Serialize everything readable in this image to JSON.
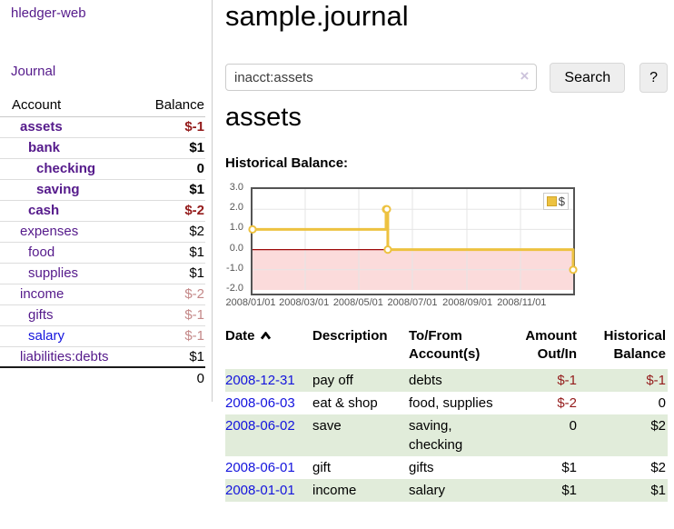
{
  "app": {
    "title": "hledger-web",
    "nav_journal": "Journal"
  },
  "colors": {
    "link_purple": "#551a8b",
    "link_blue": "#1414dd",
    "negative_strong": "#941b1b",
    "negative_muted": "#c48888",
    "row_green": "#e1ecda",
    "series_gold": "#edc240",
    "negative_region_pink": "#fbdbdb",
    "zero_line_red": "#9e0b0b"
  },
  "sidebar": {
    "accounts_header": {
      "account": "Account",
      "balance": "Balance"
    },
    "accounts": [
      {
        "name": "assets",
        "depth": 1,
        "bold": true,
        "balance": "$-1",
        "balance_style": "negative-strong",
        "link_color": "purple"
      },
      {
        "name": "bank",
        "depth": 2,
        "bold": true,
        "balance": "$1",
        "balance_style": "normal",
        "link_color": "purple"
      },
      {
        "name": "checking",
        "depth": 3,
        "bold": true,
        "balance": "0",
        "balance_style": "normal",
        "link_color": "purple"
      },
      {
        "name": "saving",
        "depth": 3,
        "bold": true,
        "balance": "$1",
        "balance_style": "normal",
        "link_color": "purple"
      },
      {
        "name": "cash",
        "depth": 2,
        "bold": true,
        "balance": "$-2",
        "balance_style": "negative-strong",
        "link_color": "purple"
      },
      {
        "name": "expenses",
        "depth": 1,
        "bold": false,
        "balance": "$2",
        "balance_style": "normal",
        "link_color": "purple"
      },
      {
        "name": "food",
        "depth": 2,
        "bold": false,
        "balance": "$1",
        "balance_style": "normal",
        "link_color": "purple"
      },
      {
        "name": "supplies",
        "depth": 2,
        "bold": false,
        "balance": "$1",
        "balance_style": "normal",
        "link_color": "purple"
      },
      {
        "name": "income",
        "depth": 1,
        "bold": false,
        "balance": "$-2",
        "balance_style": "negative-muted",
        "link_color": "purple"
      },
      {
        "name": "gifts",
        "depth": 2,
        "bold": false,
        "balance": "$-1",
        "balance_style": "negative-muted",
        "link_color": "purple"
      },
      {
        "name": "salary",
        "depth": 2,
        "bold": false,
        "balance": "$-1",
        "balance_style": "negative-muted",
        "link_color": "blue"
      },
      {
        "name": "liabilities:debts",
        "depth": 1,
        "bold": false,
        "balance": "$1",
        "balance_style": "normal",
        "link_color": "purple"
      }
    ],
    "total": "0"
  },
  "main": {
    "title": "sample.journal",
    "search": {
      "value": "inacct:assets",
      "clear_icon": "×",
      "button": "Search",
      "help_button": "?"
    },
    "account_heading": "assets",
    "chart_label": "Historical Balance:"
  },
  "chart_data": {
    "type": "line",
    "step": true,
    "title": "Historical Balance",
    "x_start": "2008-01-01",
    "x_end": "2008-12-31",
    "ylim": [
      -2,
      3
    ],
    "y_ticks": [
      3.0,
      2.0,
      1.0,
      0.0,
      -1.0,
      -2.0
    ],
    "x_ticks": [
      {
        "label": "2008/01/01",
        "date": "2008-01-01"
      },
      {
        "label": "2008/03/01",
        "date": "2008-03-01"
      },
      {
        "label": "2008/05/01",
        "date": "2008-05-01"
      },
      {
        "label": "2008/07/01",
        "date": "2008-07-01"
      },
      {
        "label": "2008/09/01",
        "date": "2008-09-01"
      },
      {
        "label": "2008/11/01",
        "date": "2008-11-01"
      }
    ],
    "series": [
      {
        "name": "$",
        "color": "#edc240",
        "points": [
          [
            "2008-01-01",
            1
          ],
          [
            "2008-06-01",
            2
          ],
          [
            "2008-06-02",
            2
          ],
          [
            "2008-06-03",
            0
          ],
          [
            "2008-12-31",
            -1
          ]
        ]
      }
    ],
    "grid": true,
    "grid_color": "#e5e5e5",
    "plot_border_color": "#545454",
    "negative_region_fill": "#fbdbdb",
    "zero_line_color": "#9e0b0b",
    "legend": {
      "label": "$",
      "position": "top-right"
    }
  },
  "register": {
    "headers": [
      "Date",
      "Description",
      "To/From Account(s)",
      "Amount Out/In",
      "Historical Balance"
    ],
    "rows": [
      {
        "date": "2008-12-31",
        "description": "pay off",
        "accounts": "debts",
        "amount": "$-1",
        "amount_negative": true,
        "balance": "$-1",
        "balance_negative": true
      },
      {
        "date": "2008-06-03",
        "description": "eat & shop",
        "accounts": "food, supplies",
        "amount": "$-2",
        "amount_negative": true,
        "balance": "0",
        "balance_negative": false
      },
      {
        "date": "2008-06-02",
        "description": "save",
        "accounts": "saving, checking",
        "amount": "0",
        "amount_negative": false,
        "balance": "$2",
        "balance_negative": false
      },
      {
        "date": "2008-06-01",
        "description": "gift",
        "accounts": "gifts",
        "amount": "$1",
        "amount_negative": false,
        "balance": "$2",
        "balance_negative": false
      },
      {
        "date": "2008-01-01",
        "description": "income",
        "accounts": "salary",
        "amount": "$1",
        "amount_negative": false,
        "balance": "$1",
        "balance_negative": false
      }
    ]
  }
}
